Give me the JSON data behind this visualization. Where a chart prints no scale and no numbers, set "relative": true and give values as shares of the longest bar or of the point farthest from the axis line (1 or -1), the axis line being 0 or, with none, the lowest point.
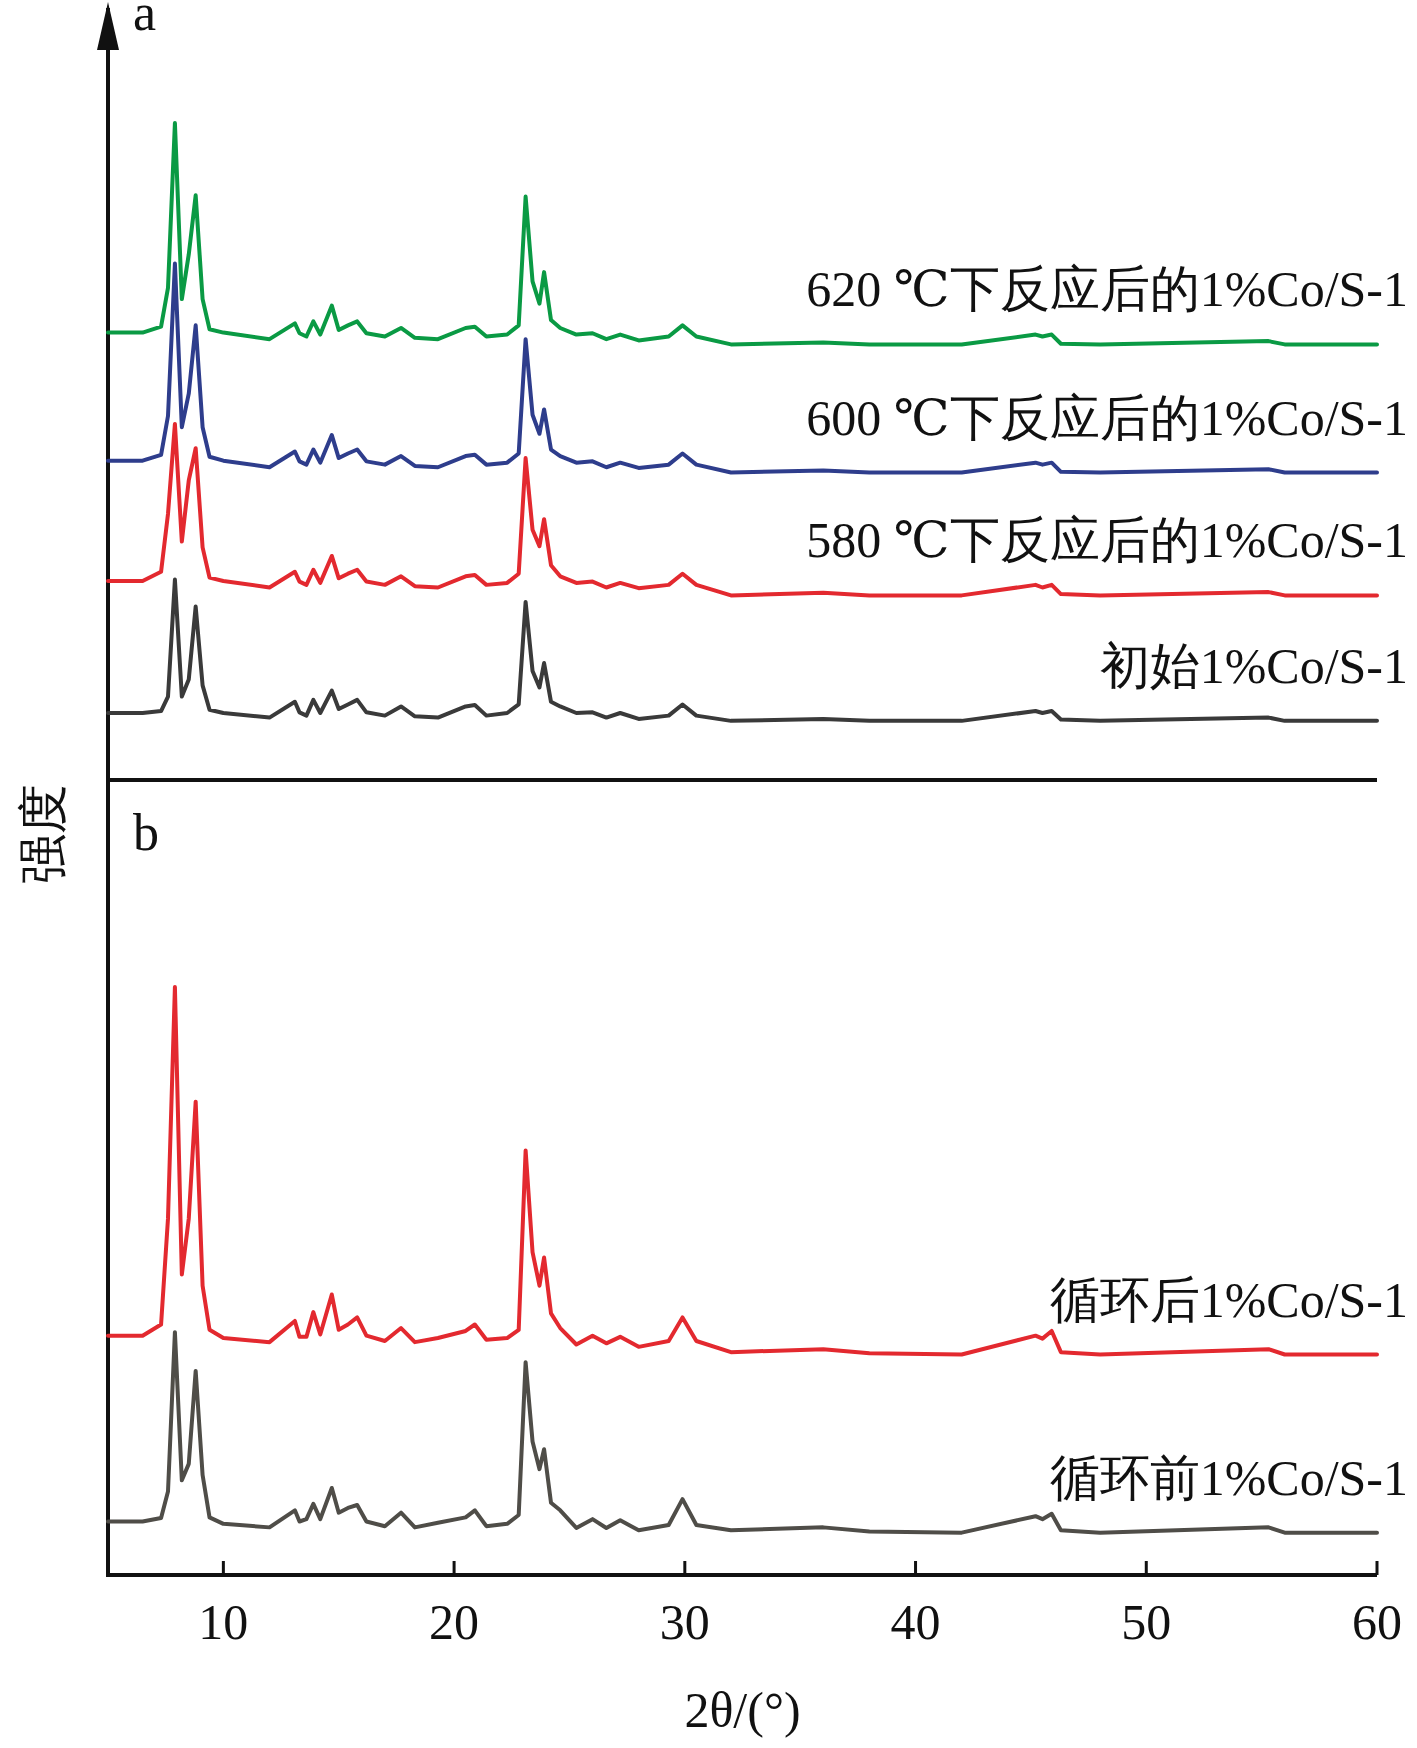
{
  "chart_data": [
    {
      "type": "line",
      "title": "a",
      "ylabel": "强度",
      "relative": true,
      "xlim": [
        5,
        60
      ],
      "tick_labels": false,
      "series": [
        {
          "name": "620 ℃下反应后的1%Co/S-1",
          "color": "#0a9a44",
          "x": [
            5,
            6.5,
            7.3,
            7.6,
            7.9,
            8.2,
            8.5,
            8.8,
            9.1,
            9.4,
            10,
            12,
            13.1,
            13.3,
            13.6,
            13.9,
            14.2,
            14.7,
            15.0,
            15.4,
            15.8,
            16.2,
            17,
            17.7,
            18.3,
            19.3,
            20.5,
            20.9,
            21.4,
            22.3,
            22.8,
            23.1,
            23.4,
            23.7,
            23.9,
            24.2,
            24.6,
            25.3,
            26.0,
            26.6,
            27.2,
            28,
            29.3,
            29.9,
            30.5,
            32,
            36,
            38,
            42,
            45.2,
            45.5,
            45.9,
            46.3,
            48,
            55.3,
            56,
            60
          ],
          "values": [
            0.681,
            0.681,
            0.69,
            0.749,
            1.0,
            0.732,
            0.8,
            0.89,
            0.732,
            0.686,
            0.681,
            0.671,
            0.695,
            0.68,
            0.675,
            0.698,
            0.678,
            0.722,
            0.685,
            0.692,
            0.698,
            0.68,
            0.675,
            0.688,
            0.673,
            0.671,
            0.688,
            0.69,
            0.675,
            0.678,
            0.692,
            0.888,
            0.759,
            0.725,
            0.773,
            0.7,
            0.688,
            0.678,
            0.68,
            0.671,
            0.678,
            0.669,
            0.675,
            0.692,
            0.675,
            0.663,
            0.666,
            0.663,
            0.663,
            0.678,
            0.675,
            0.678,
            0.664,
            0.663,
            0.668,
            0.663,
            0.663
          ]
        },
        {
          "name": "600 ℃下反应后的1%Co/S-1",
          "color": "#2e3d8c",
          "x": [
            5,
            6.5,
            7.3,
            7.6,
            7.9,
            8.2,
            8.5,
            8.8,
            9.1,
            9.4,
            10,
            12,
            13.1,
            13.3,
            13.6,
            13.9,
            14.2,
            14.7,
            15.0,
            15.4,
            15.8,
            16.2,
            17,
            17.7,
            18.3,
            19.3,
            20.5,
            20.9,
            21.4,
            22.3,
            22.8,
            23.1,
            23.4,
            23.7,
            23.9,
            24.2,
            24.6,
            25.3,
            26.0,
            26.6,
            27.2,
            28,
            29.3,
            29.9,
            30.5,
            32,
            36,
            38,
            42,
            45.2,
            45.5,
            45.9,
            46.3,
            48,
            55.3,
            56,
            60
          ],
          "values": [
            0.486,
            0.486,
            0.495,
            0.554,
            0.786,
            0.537,
            0.588,
            0.692,
            0.537,
            0.492,
            0.486,
            0.476,
            0.5,
            0.485,
            0.48,
            0.503,
            0.483,
            0.525,
            0.49,
            0.497,
            0.503,
            0.485,
            0.48,
            0.493,
            0.478,
            0.476,
            0.493,
            0.495,
            0.48,
            0.483,
            0.497,
            0.671,
            0.556,
            0.527,
            0.564,
            0.503,
            0.493,
            0.483,
            0.485,
            0.476,
            0.483,
            0.475,
            0.48,
            0.497,
            0.48,
            0.468,
            0.471,
            0.468,
            0.468,
            0.483,
            0.48,
            0.483,
            0.469,
            0.468,
            0.473,
            0.468,
            0.468
          ]
        },
        {
          "name": "580 ℃下反应后的1%Co/S-1",
          "color": "#e3292f",
          "x": [
            5,
            6.5,
            7.3,
            7.6,
            7.9,
            8.2,
            8.5,
            8.8,
            9.1,
            9.4,
            10,
            12,
            13.1,
            13.3,
            13.6,
            13.9,
            14.2,
            14.7,
            15.0,
            15.4,
            15.8,
            16.2,
            17,
            17.7,
            18.3,
            19.3,
            20.5,
            20.9,
            21.4,
            22.3,
            22.8,
            23.1,
            23.4,
            23.7,
            23.9,
            24.2,
            24.6,
            25.3,
            26.0,
            26.6,
            27.2,
            28,
            29.3,
            29.9,
            30.5,
            32,
            36,
            38,
            42,
            45.2,
            45.5,
            45.9,
            46.3,
            48,
            55.3,
            56,
            60
          ],
          "values": [
            0.303,
            0.303,
            0.317,
            0.405,
            0.542,
            0.363,
            0.456,
            0.505,
            0.354,
            0.308,
            0.303,
            0.293,
            0.317,
            0.302,
            0.297,
            0.32,
            0.3,
            0.341,
            0.307,
            0.314,
            0.32,
            0.302,
            0.297,
            0.31,
            0.295,
            0.293,
            0.31,
            0.312,
            0.297,
            0.3,
            0.314,
            0.49,
            0.381,
            0.356,
            0.397,
            0.327,
            0.31,
            0.3,
            0.302,
            0.293,
            0.3,
            0.292,
            0.297,
            0.314,
            0.297,
            0.281,
            0.285,
            0.281,
            0.281,
            0.297,
            0.293,
            0.297,
            0.283,
            0.281,
            0.286,
            0.281,
            0.281
          ]
        },
        {
          "name": "初始1%Co/S-1",
          "color": "#3a3a3a",
          "x": [
            5,
            6.5,
            7.3,
            7.6,
            7.9,
            8.2,
            8.5,
            8.8,
            9.1,
            9.4,
            10,
            12,
            13.1,
            13.3,
            13.6,
            13.9,
            14.2,
            14.7,
            15.0,
            15.4,
            15.8,
            16.2,
            17,
            17.7,
            18.3,
            19.3,
            20.5,
            20.9,
            21.4,
            22.3,
            22.8,
            23.1,
            23.4,
            23.7,
            23.9,
            24.2,
            24.6,
            25.3,
            26.0,
            26.6,
            27.2,
            28,
            29.3,
            29.9,
            30.5,
            32,
            36,
            38,
            42,
            45.2,
            45.5,
            45.9,
            46.3,
            48,
            55.3,
            56,
            60
          ],
          "values": [
            0.102,
            0.102,
            0.105,
            0.127,
            0.305,
            0.127,
            0.153,
            0.264,
            0.144,
            0.107,
            0.102,
            0.095,
            0.119,
            0.103,
            0.098,
            0.122,
            0.102,
            0.136,
            0.108,
            0.115,
            0.122,
            0.103,
            0.098,
            0.112,
            0.097,
            0.095,
            0.112,
            0.114,
            0.098,
            0.102,
            0.115,
            0.271,
            0.166,
            0.141,
            0.178,
            0.119,
            0.112,
            0.102,
            0.103,
            0.095,
            0.102,
            0.093,
            0.098,
            0.115,
            0.098,
            0.09,
            0.093,
            0.09,
            0.09,
            0.105,
            0.102,
            0.105,
            0.092,
            0.09,
            0.095,
            0.09,
            0.09
          ]
        }
      ]
    },
    {
      "type": "line",
      "title": "b",
      "xlabel": "2θ/(°)",
      "relative": true,
      "xlim": [
        5,
        60
      ],
      "xticks": [
        10,
        20,
        30,
        40,
        50,
        60
      ],
      "tick_labels": "x",
      "series": [
        {
          "name": "循环后1%Co/S-1",
          "color": "#e3292f",
          "x": [
            5,
            6.5,
            7.3,
            7.6,
            7.9,
            8.2,
            8.5,
            8.8,
            9.1,
            9.4,
            10,
            12,
            13.1,
            13.3,
            13.6,
            13.9,
            14.2,
            14.7,
            15.0,
            15.4,
            15.8,
            16.2,
            17,
            17.7,
            18.3,
            19.3,
            20.5,
            20.9,
            21.4,
            22.3,
            22.8,
            23.1,
            23.4,
            23.7,
            23.9,
            24.2,
            24.6,
            25.3,
            26.0,
            26.6,
            27.2,
            28,
            29.3,
            29.9,
            30.5,
            32,
            36,
            38,
            42,
            45.2,
            45.5,
            45.9,
            46.3,
            48,
            55.3,
            56,
            60
          ],
          "values": [
            0.407,
            0.407,
            0.426,
            0.606,
            1.0,
            0.511,
            0.606,
            0.805,
            0.492,
            0.417,
            0.403,
            0.396,
            0.432,
            0.405,
            0.405,
            0.447,
            0.409,
            0.477,
            0.417,
            0.426,
            0.438,
            0.407,
            0.398,
            0.42,
            0.396,
            0.403,
            0.415,
            0.426,
            0.4,
            0.403,
            0.417,
            0.722,
            0.549,
            0.492,
            0.54,
            0.445,
            0.42,
            0.392,
            0.407,
            0.394,
            0.405,
            0.388,
            0.398,
            0.438,
            0.398,
            0.379,
            0.384,
            0.377,
            0.375,
            0.407,
            0.402,
            0.415,
            0.379,
            0.375,
            0.384,
            0.375,
            0.375
          ]
        },
        {
          "name": "循环前1%Co/S-1",
          "color": "#4f4d48",
          "x": [
            5,
            6.5,
            7.3,
            7.6,
            7.9,
            8.2,
            8.5,
            8.8,
            9.1,
            9.4,
            10,
            12,
            13.1,
            13.3,
            13.6,
            13.9,
            14.2,
            14.7,
            15.0,
            15.4,
            15.8,
            16.2,
            17,
            17.7,
            18.3,
            19.3,
            20.5,
            20.9,
            21.4,
            22.3,
            22.8,
            23.1,
            23.4,
            23.7,
            23.9,
            24.2,
            24.6,
            25.3,
            26.0,
            26.6,
            27.2,
            28,
            29.3,
            29.9,
            30.5,
            32,
            36,
            38,
            42,
            45.2,
            45.5,
            45.9,
            46.3,
            48,
            55.3,
            56,
            60
          ],
          "values": [
            0.091,
            0.091,
            0.097,
            0.142,
            0.413,
            0.161,
            0.189,
            0.347,
            0.17,
            0.098,
            0.087,
            0.081,
            0.11,
            0.091,
            0.095,
            0.121,
            0.095,
            0.148,
            0.106,
            0.114,
            0.119,
            0.091,
            0.083,
            0.106,
            0.081,
            0.089,
            0.098,
            0.11,
            0.083,
            0.087,
            0.102,
            0.362,
            0.227,
            0.18,
            0.214,
            0.123,
            0.11,
            0.08,
            0.095,
            0.08,
            0.093,
            0.076,
            0.085,
            0.129,
            0.085,
            0.076,
            0.081,
            0.074,
            0.072,
            0.1,
            0.095,
            0.104,
            0.076,
            0.072,
            0.081,
            0.072,
            0.072
          ]
        }
      ]
    }
  ]
}
